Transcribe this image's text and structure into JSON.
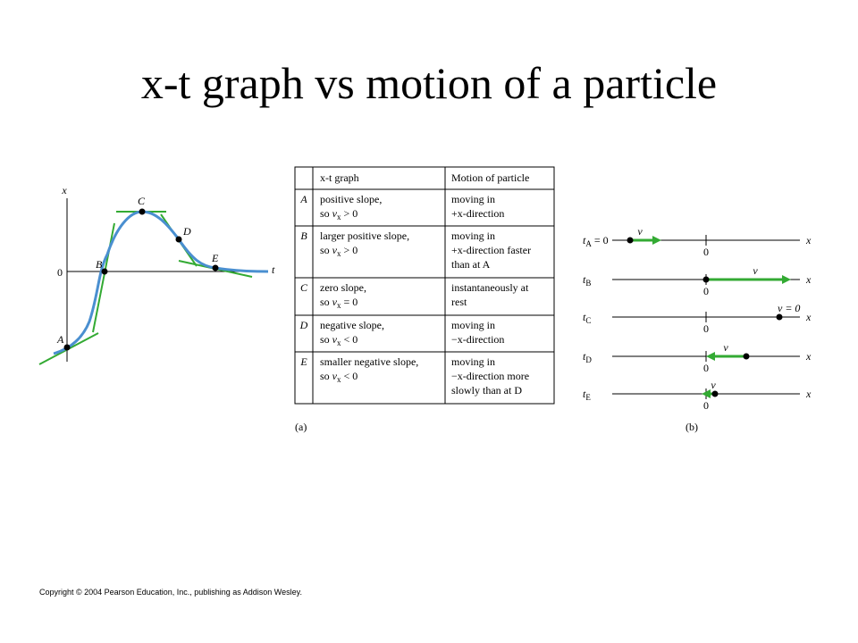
{
  "title": "x-t graph vs motion of a particle",
  "graph": {
    "y_axis_label": "x",
    "x_axis_label": "t",
    "origin_label": "0",
    "points": [
      "A",
      "B",
      "C",
      "D",
      "E"
    ]
  },
  "table": {
    "header": [
      "x-t graph",
      "Motion of particle"
    ],
    "rows": [
      {
        "label": "A",
        "graph": [
          "positive slope,",
          [
            "so ",
            "v",
            {
              "sub": "x"
            },
            " > 0"
          ]
        ],
        "motion": [
          "moving in",
          "+x-direction"
        ]
      },
      {
        "label": "B",
        "graph": [
          "larger positive slope,",
          [
            "so ",
            "v",
            {
              "sub": "x"
            },
            " > 0"
          ]
        ],
        "motion": [
          "moving in",
          "+x-direction faster",
          "than at A"
        ]
      },
      {
        "label": "C",
        "graph": [
          "zero slope,",
          [
            "so ",
            "v",
            {
              "sub": "x"
            },
            " = 0"
          ]
        ],
        "motion": [
          "instantaneously at",
          "rest"
        ]
      },
      {
        "label": "D",
        "graph": [
          "negative slope,",
          [
            "so ",
            "v",
            {
              "sub": "x"
            },
            " < 0"
          ]
        ],
        "motion": [
          "moving in",
          "−x-direction"
        ]
      },
      {
        "label": "E",
        "graph": [
          "smaller negative slope,",
          [
            "so ",
            "v",
            {
              "sub": "x"
            },
            " < 0"
          ]
        ],
        "motion": [
          "moving in",
          "−x-direction more",
          "slowly than at D"
        ]
      }
    ]
  },
  "caption_a": "(a)",
  "caption_b": "(b)",
  "motion": {
    "rows": [
      [
        "t",
        {
          "sub": "A"
        },
        " = 0"
      ],
      [
        "t",
        {
          "sub": "B"
        }
      ],
      [
        "t",
        {
          "sub": "C"
        }
      ],
      [
        "t",
        {
          "sub": "D"
        }
      ],
      [
        "t",
        {
          "sub": "E"
        }
      ]
    ],
    "velocity_labels": [
      "v",
      "v",
      "v = 0",
      "v",
      "v"
    ],
    "origin_label": "0",
    "axis_label": "x"
  },
  "footer": "Copyright © 2004 Pearson Education, Inc., publishing as Addison Wesley."
}
